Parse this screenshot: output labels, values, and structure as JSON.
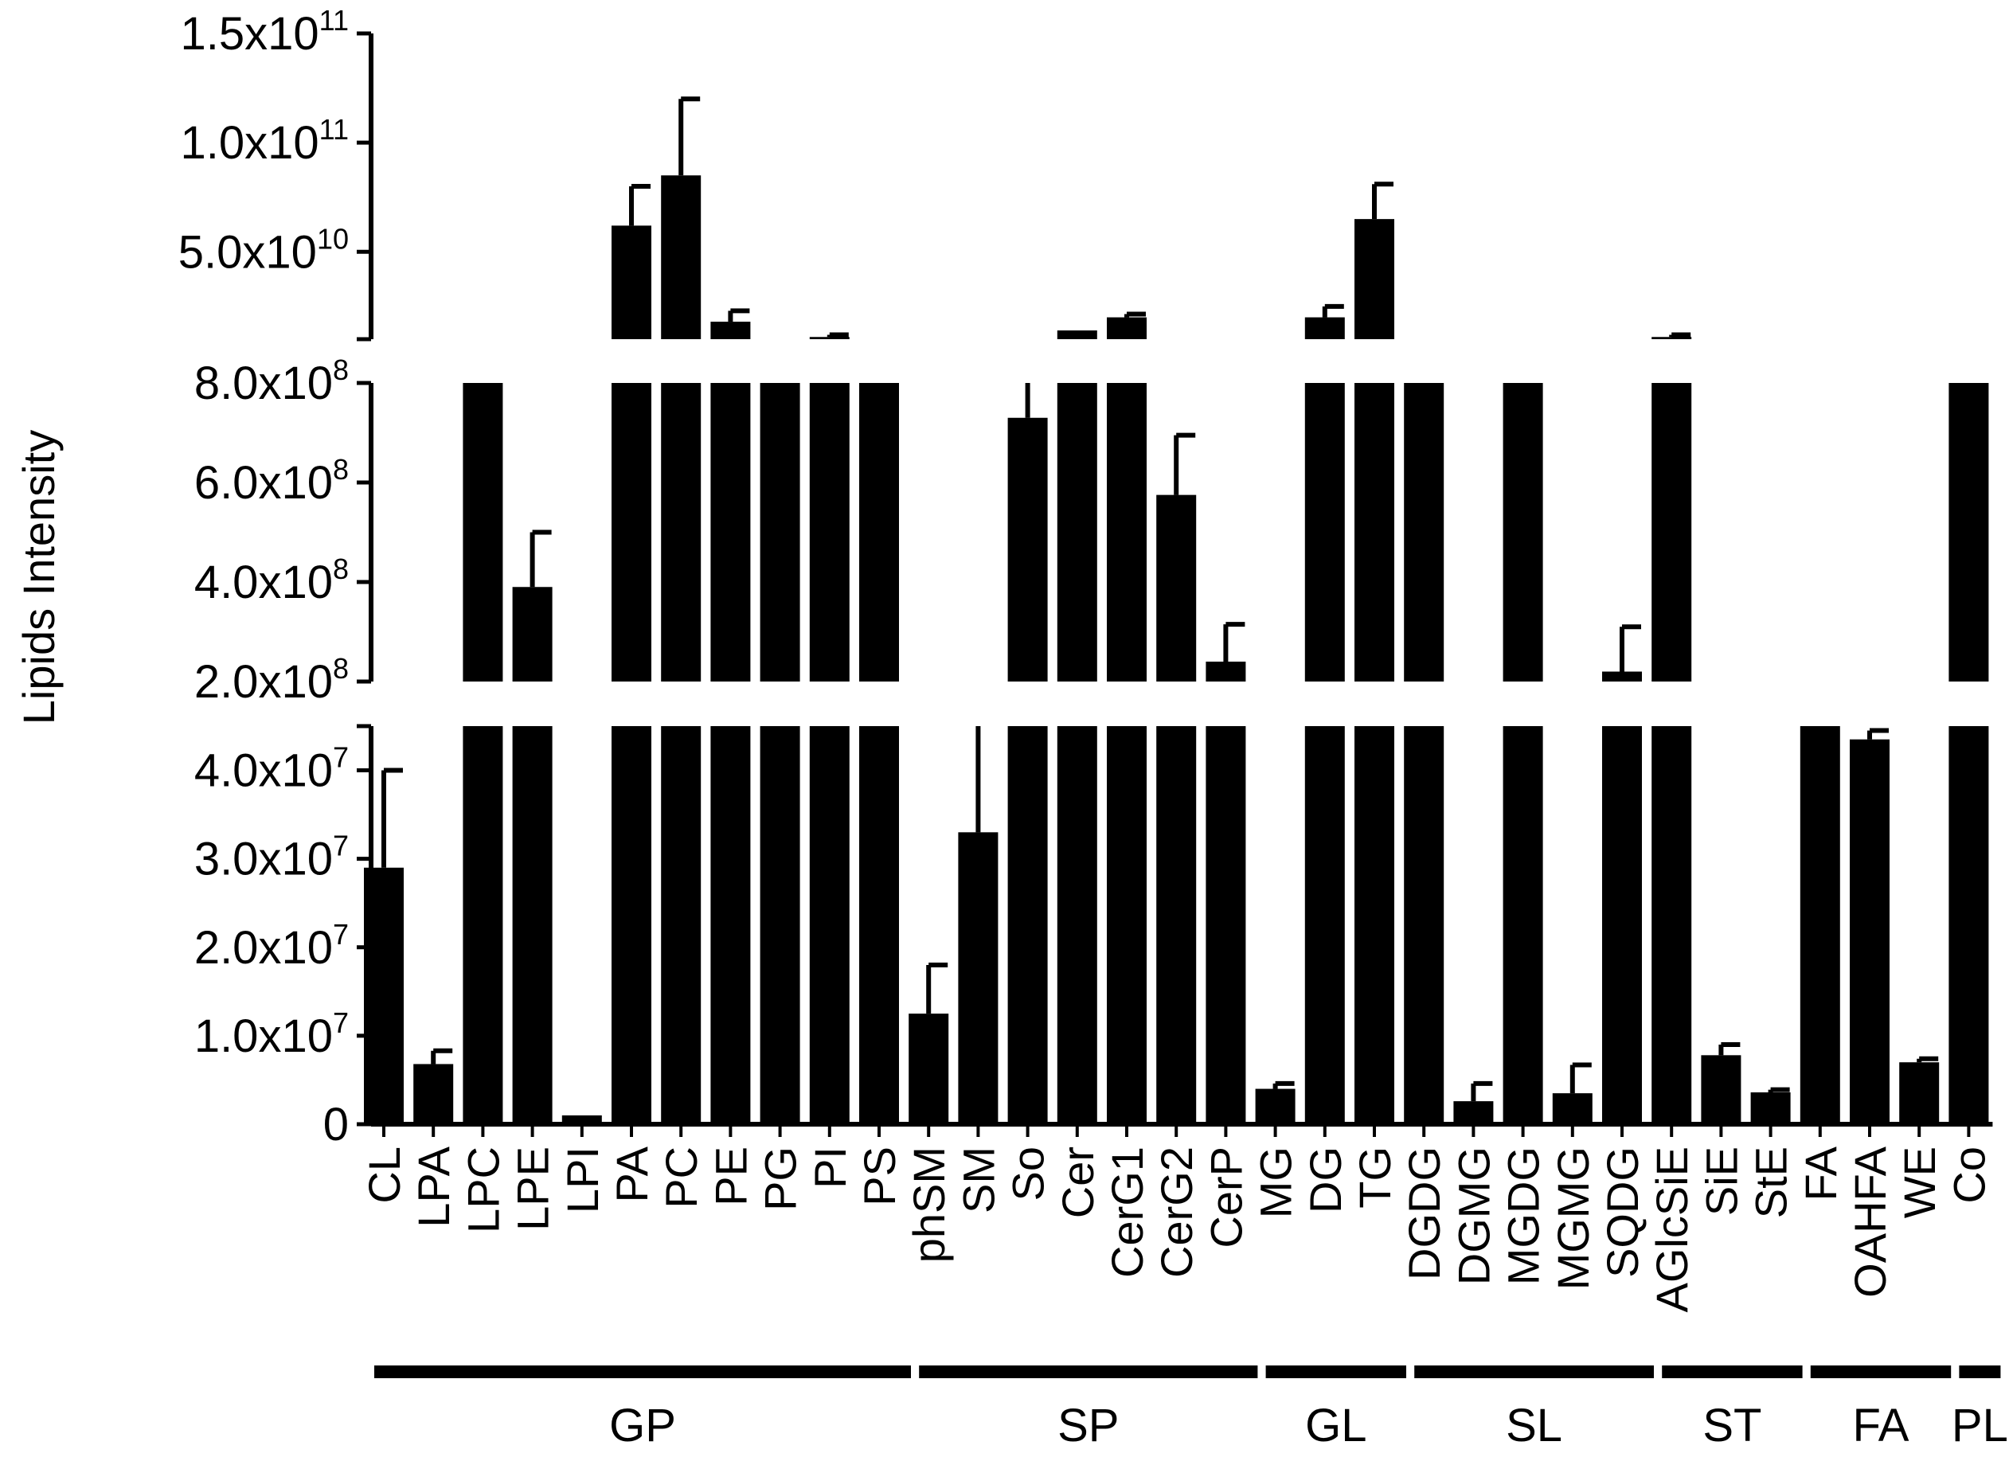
{
  "chart_data": {
    "type": "bar",
    "ylabel": "Lipids Intensity",
    "xlabel": "",
    "bar_color": "#000000",
    "y_scale": "broken axis (three segments)",
    "segments": [
      {
        "name": "bottom",
        "ylim": [
          0,
          45000000
        ],
        "ticks": [
          {
            "mant": "0",
            "exp": ""
          },
          {
            "mant": "1.0x10",
            "exp": "7"
          },
          {
            "mant": "2.0x10",
            "exp": "7"
          },
          {
            "mant": "3.0x10",
            "exp": "7"
          },
          {
            "mant": "4.0x10",
            "exp": "7"
          }
        ],
        "tick_values": [
          0,
          10000000,
          20000000,
          30000000,
          40000000
        ]
      },
      {
        "name": "middle",
        "ylim": [
          200000000,
          800000000
        ],
        "ticks": [
          {
            "mant": "2.0x10",
            "exp": "8"
          },
          {
            "mant": "4.0x10",
            "exp": "8"
          },
          {
            "mant": "6.0x10",
            "exp": "8"
          },
          {
            "mant": "8.0x10",
            "exp": "8"
          }
        ],
        "tick_values": [
          200000000,
          400000000,
          600000000,
          800000000
        ]
      },
      {
        "name": "top",
        "ylim": [
          10000000000,
          150000000000
        ],
        "ticks": [
          {
            "mant": "5.0x10",
            "exp": "10"
          },
          {
            "mant": "1.0x10",
            "exp": "11"
          },
          {
            "mant": "1.5x10",
            "exp": "11"
          }
        ],
        "tick_values": [
          50000000000,
          100000000000,
          150000000000
        ]
      }
    ],
    "categories": [
      "CL",
      "LPA",
      "LPC",
      "LPE",
      "LPI",
      "PA",
      "PC",
      "PE",
      "PG",
      "PI",
      "PS",
      "phSM",
      "SM",
      "So",
      "Cer",
      "CerG1",
      "CerG2",
      "CerP",
      "MG",
      "DG",
      "TG",
      "DGDG",
      "DGMG",
      "MGDG",
      "MGMG",
      "SQDG",
      "AGlcSiE",
      "SiE",
      "StE",
      "FA",
      "OAHFA",
      "WE",
      "Co"
    ],
    "series": [
      {
        "values": [
          29000000,
          6800000,
          3000000000,
          390000000,
          1000000,
          62000000000,
          85000000000,
          18000000000,
          3000000000,
          11000000000,
          3000000000,
          12500000,
          33000000,
          730000000,
          14000000000,
          20000000000,
          575000000,
          240000000,
          4000000,
          20000000000,
          65000000000,
          3000000000,
          2600000,
          3000000000,
          3500000,
          220000000,
          11000000000,
          7800000,
          3600000,
          190000000,
          43500000,
          7000000,
          3000000000
        ],
        "error": [
          11000000,
          1500000,
          0,
          110000000,
          0,
          18000000000,
          35000000000,
          5000000000,
          0,
          1000000000,
          0,
          5500000,
          12000000,
          80000000,
          0,
          1500000000,
          120000000,
          75000000,
          600000,
          5000000000,
          16000000000,
          0,
          2000000,
          0,
          3200000,
          90000000,
          1000000000,
          1200000,
          300000,
          7000000,
          1000000,
          400000,
          0
        ]
      }
    ],
    "groups": [
      {
        "label": "GP",
        "from": 0,
        "to": 10
      },
      {
        "label": "SP",
        "from": 11,
        "to": 17
      },
      {
        "label": "GL",
        "from": 18,
        "to": 20
      },
      {
        "label": "SL",
        "from": 21,
        "to": 25
      },
      {
        "label": "ST",
        "from": 26,
        "to": 28
      },
      {
        "label": "FA",
        "from": 29,
        "to": 31
      },
      {
        "label": "PL",
        "from": 32,
        "to": 32
      }
    ]
  }
}
